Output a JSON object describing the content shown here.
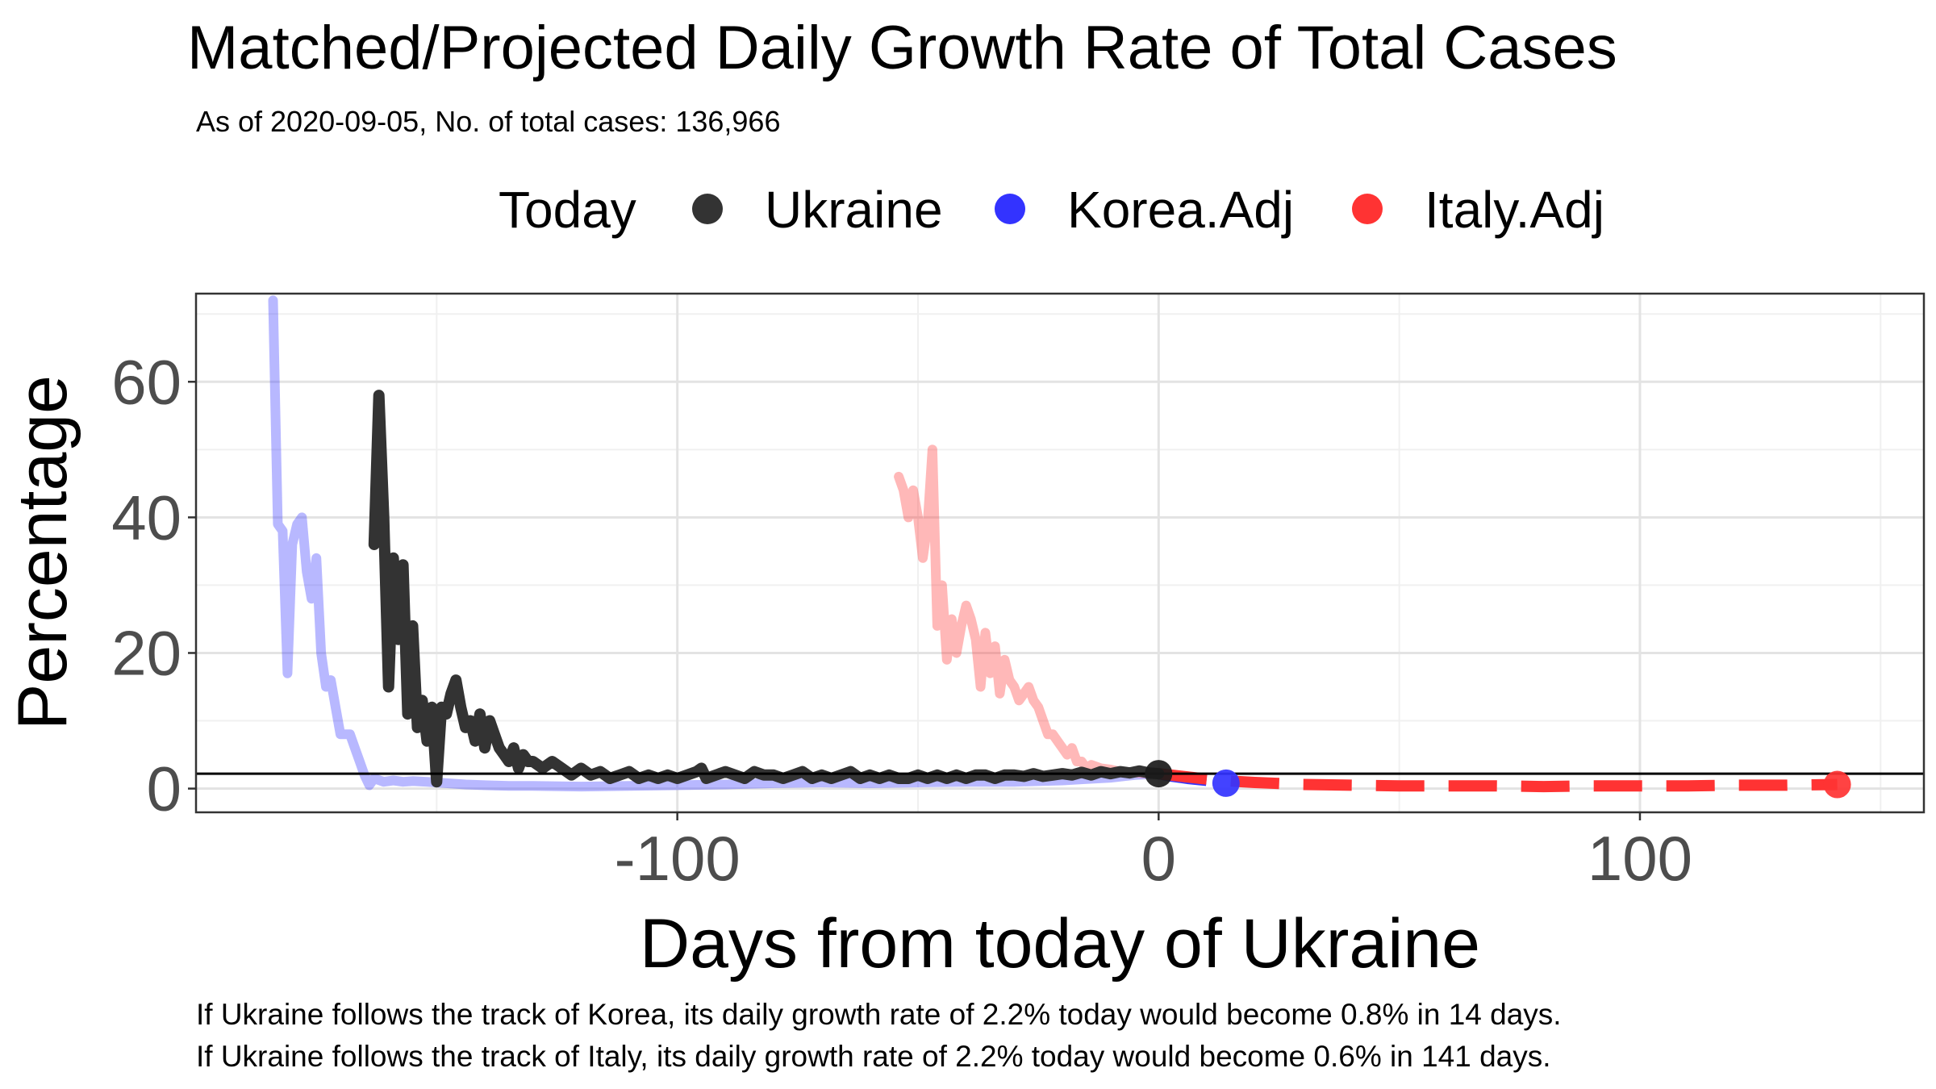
{
  "chart_data": {
    "type": "line",
    "title": "Matched/Projected Daily Growth Rate of Total Cases",
    "subtitle": "As of 2020-09-05, No. of total cases: 136,966",
    "xlabel": "Days from today of Ukraine",
    "ylabel": "Percentage",
    "xlim": [
      -200,
      159
    ],
    "ylim": [
      -3.5,
      73
    ],
    "x_ticks": [
      -100,
      0,
      100
    ],
    "y_ticks": [
      0,
      20,
      40,
      60
    ],
    "x_tick_labels": [
      "-100",
      "0",
      "100"
    ],
    "y_tick_labels": [
      "0",
      "20",
      "40",
      "60"
    ],
    "grid": true,
    "legend": {
      "title": "Today",
      "position": "top",
      "entries": [
        {
          "label": "Ukraine",
          "color": "#333333"
        },
        {
          "label": "Korea.Adj",
          "color": "#3333ff"
        },
        {
          "label": "Italy.Adj",
          "color": "#ff3333"
        }
      ]
    },
    "hline": 2.2,
    "series": [
      {
        "name": "Ukraine",
        "color": "#333333",
        "points": [
          [
            -163,
            36
          ],
          [
            -162,
            58
          ],
          [
            -161,
            40
          ],
          [
            -160,
            15
          ],
          [
            -159,
            34
          ],
          [
            -158,
            22
          ],
          [
            -157,
            33
          ],
          [
            -156,
            11
          ],
          [
            -155,
            24
          ],
          [
            -154,
            9
          ],
          [
            -153,
            13
          ],
          [
            -152,
            7
          ],
          [
            -151,
            12
          ],
          [
            -150,
            1
          ],
          [
            -149,
            12
          ],
          [
            -148,
            11
          ],
          [
            -147,
            14
          ],
          [
            -146,
            16
          ],
          [
            -145,
            12
          ],
          [
            -144,
            9
          ],
          [
            -143,
            10
          ],
          [
            -142,
            7
          ],
          [
            -141,
            11
          ],
          [
            -140,
            6
          ],
          [
            -139,
            10
          ],
          [
            -138,
            8
          ],
          [
            -137,
            6
          ],
          [
            -136,
            5
          ],
          [
            -135,
            4
          ],
          [
            -134,
            6
          ],
          [
            -133,
            3
          ],
          [
            -132,
            5
          ],
          [
            -131,
            4
          ],
          [
            -130,
            4
          ],
          [
            -128,
            3
          ],
          [
            -126,
            4
          ],
          [
            -124,
            3
          ],
          [
            -122,
            2
          ],
          [
            -120,
            3
          ],
          [
            -118,
            2
          ],
          [
            -116,
            2.5
          ],
          [
            -114,
            1.5
          ],
          [
            -112,
            2
          ],
          [
            -110,
            2.5
          ],
          [
            -108,
            1.5
          ],
          [
            -106,
            2
          ],
          [
            -104,
            1.5
          ],
          [
            -102,
            2
          ],
          [
            -100,
            1.5
          ],
          [
            -98,
            2
          ],
          [
            -96,
            2.5
          ],
          [
            -95,
            3
          ],
          [
            -94,
            1.5
          ],
          [
            -92,
            2
          ],
          [
            -90,
            2.5
          ],
          [
            -88,
            2
          ],
          [
            -86,
            1.5
          ],
          [
            -84,
            2.5
          ],
          [
            -82,
            2
          ],
          [
            -80,
            2
          ],
          [
            -78,
            1.5
          ],
          [
            -76,
            2
          ],
          [
            -74,
            2.5
          ],
          [
            -72,
            1.5
          ],
          [
            -70,
            2
          ],
          [
            -68,
            1.5
          ],
          [
            -66,
            2
          ],
          [
            -64,
            2.5
          ],
          [
            -62,
            1.5
          ],
          [
            -60,
            2
          ],
          [
            -58,
            1.5
          ],
          [
            -56,
            2
          ],
          [
            -54,
            1.5
          ],
          [
            -52,
            1.5
          ],
          [
            -50,
            2
          ],
          [
            -48,
            1.5
          ],
          [
            -46,
            2
          ],
          [
            -44,
            1.5
          ],
          [
            -42,
            2
          ],
          [
            -40,
            1.5
          ],
          [
            -38,
            2
          ],
          [
            -36,
            2
          ],
          [
            -34,
            1.5
          ],
          [
            -32,
            2
          ],
          [
            -30,
            2
          ],
          [
            -28,
            1.8
          ],
          [
            -26,
            2.2
          ],
          [
            -24,
            1.8
          ],
          [
            -22,
            2
          ],
          [
            -20,
            2.2
          ],
          [
            -18,
            2
          ],
          [
            -16,
            2.4
          ],
          [
            -14,
            2
          ],
          [
            -12,
            2.5
          ],
          [
            -10,
            2.2
          ],
          [
            -8,
            2.5
          ],
          [
            -6,
            2.3
          ],
          [
            -4,
            2.6
          ],
          [
            -2,
            2.3
          ],
          [
            0,
            2.2
          ]
        ]
      },
      {
        "name": "Korea.Adj",
        "color": "#3333ff",
        "points": [
          [
            -184,
            72
          ],
          [
            -183,
            39
          ],
          [
            -182,
            38
          ],
          [
            -181,
            17
          ],
          [
            -180,
            36
          ],
          [
            -179,
            39
          ],
          [
            -178,
            40
          ],
          [
            -177,
            32
          ],
          [
            -176,
            28
          ],
          [
            -175,
            34
          ],
          [
            -174,
            20
          ],
          [
            -173,
            15
          ],
          [
            -172,
            16
          ],
          [
            -171,
            12
          ],
          [
            -170,
            8
          ],
          [
            -168,
            8
          ],
          [
            -167,
            6
          ],
          [
            -166,
            4
          ],
          [
            -165,
            2
          ],
          [
            -164,
            0.5
          ],
          [
            -163,
            1.5
          ],
          [
            -161,
            1
          ],
          [
            -159,
            1.2
          ],
          [
            -157,
            1
          ],
          [
            -155,
            1.1
          ],
          [
            -152,
            1
          ],
          [
            -148,
            0.8
          ],
          [
            -144,
            0.6
          ],
          [
            -140,
            0.5
          ],
          [
            -135,
            0.4
          ],
          [
            -130,
            0.4
          ],
          [
            -120,
            0.3
          ],
          [
            -110,
            0.4
          ],
          [
            -100,
            0.5
          ],
          [
            -90,
            0.6
          ],
          [
            -80,
            0.8
          ],
          [
            -70,
            0.9
          ],
          [
            -60,
            0.8
          ],
          [
            -50,
            0.9
          ],
          [
            -40,
            1
          ],
          [
            -30,
            1
          ],
          [
            -20,
            1.2
          ],
          [
            -15,
            1.4
          ],
          [
            -10,
            1.6
          ],
          [
            -5,
            2
          ],
          [
            0,
            2.2
          ],
          [
            3,
            1.8
          ],
          [
            6,
            1.5
          ],
          [
            10,
            1.2
          ],
          [
            14,
            0.8
          ]
        ],
        "projected_from_index": 45
      },
      {
        "name": "Italy.Adj",
        "color": "#ff3333",
        "points": [
          [
            -54,
            46
          ],
          [
            -53,
            44
          ],
          [
            -52,
            40
          ],
          [
            -51,
            44
          ],
          [
            -50,
            40
          ],
          [
            -49,
            34
          ],
          [
            -48,
            39
          ],
          [
            -47,
            50
          ],
          [
            -46,
            24
          ],
          [
            -45,
            30
          ],
          [
            -44,
            19
          ],
          [
            -43,
            25
          ],
          [
            -42,
            20
          ],
          [
            -41,
            24
          ],
          [
            -40,
            27
          ],
          [
            -39,
            25
          ],
          [
            -38,
            22
          ],
          [
            -37,
            15
          ],
          [
            -36,
            23
          ],
          [
            -35,
            17
          ],
          [
            -34,
            21
          ],
          [
            -33,
            14
          ],
          [
            -32,
            19
          ],
          [
            -31,
            16
          ],
          [
            -30,
            15
          ],
          [
            -29,
            13
          ],
          [
            -28,
            14
          ],
          [
            -27,
            15
          ],
          [
            -26,
            13
          ],
          [
            -25,
            12
          ],
          [
            -24,
            10
          ],
          [
            -23,
            8
          ],
          [
            -22,
            8
          ],
          [
            -21,
            7
          ],
          [
            -20,
            6
          ],
          [
            -19,
            5
          ],
          [
            -18,
            6
          ],
          [
            -17,
            4
          ],
          [
            -16,
            4
          ],
          [
            -15,
            3
          ],
          [
            -14,
            3.5
          ],
          [
            -12,
            3
          ],
          [
            -10,
            2.8
          ],
          [
            -8,
            2.5
          ],
          [
            -6,
            2.4
          ],
          [
            -4,
            2.3
          ],
          [
            -2,
            2.2
          ],
          [
            0,
            2.2
          ],
          [
            5,
            1.8
          ],
          [
            10,
            1.4
          ],
          [
            15,
            1.1
          ],
          [
            20,
            0.9
          ],
          [
            30,
            0.6
          ],
          [
            40,
            0.5
          ],
          [
            50,
            0.4
          ],
          [
            60,
            0.4
          ],
          [
            70,
            0.4
          ],
          [
            80,
            0.3
          ],
          [
            90,
            0.4
          ],
          [
            100,
            0.4
          ],
          [
            110,
            0.4
          ],
          [
            120,
            0.5
          ],
          [
            130,
            0.5
          ],
          [
            141,
            0.6
          ]
        ],
        "projected_from_index": 47
      }
    ],
    "today_markers": [
      {
        "series": "Ukraine",
        "x": 0,
        "y": 2.2,
        "color": "#1a1a1a"
      },
      {
        "series": "Korea.Adj",
        "x": 14,
        "y": 0.8,
        "color": "#3333ff"
      },
      {
        "series": "Italy.Adj",
        "x": 141,
        "y": 0.6,
        "color": "#ff3333"
      }
    ],
    "annotations": [
      "If Ukraine follows the track of Korea, its daily growth rate of 2.2% today would become 0.8% in 14 days.",
      "If Ukraine follows the track of Italy, its daily growth rate of 2.2% today would become 0.6% in 141 days."
    ]
  }
}
